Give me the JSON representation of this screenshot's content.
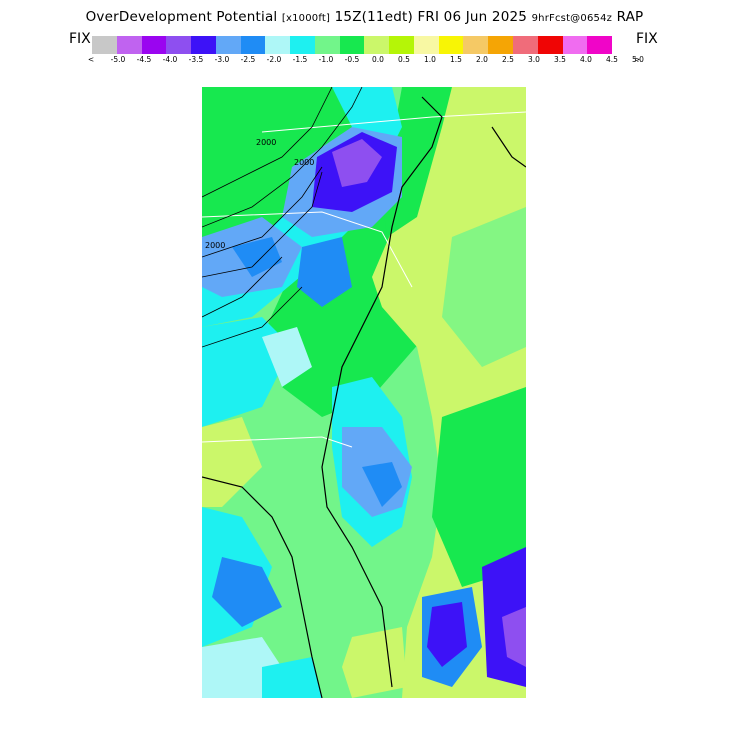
{
  "title": {
    "product": "OverDevelopment Potential",
    "units": "[x1000ft]",
    "valid": "15Z(11edt)",
    "date": "FRI 06 Jun 2025",
    "run": "9hrFcst@0654z",
    "model": "RAP"
  },
  "fix_left": "FIX",
  "fix_right": "FIX",
  "colorbar": {
    "colors": [
      "#c8c8c8",
      "#c063f0",
      "#9a05f0",
      "#8e4ff0",
      "#3d12f7",
      "#62a8f7",
      "#1f8cf5",
      "#aef7f7",
      "#1ef0f0",
      "#72f58a",
      "#17e84f",
      "#cbf76a",
      "#b5f507",
      "#f8f8a3",
      "#f8f505",
      "#f5c965",
      "#f5a505",
      "#f06c7a",
      "#f00505",
      "#f06cf0",
      "#f005c8"
    ],
    "tick_prev": "<",
    "tick_next": ">",
    "ticks": [
      "-5.0",
      "-4.5",
      "-4.0",
      "-3.5",
      "-3.0",
      "-2.5",
      "-2.0",
      "-1.5",
      "-1.0",
      "-0.5",
      "0.0",
      "0.5",
      "1.0",
      "1.5",
      "2.0",
      "2.5",
      "3.0",
      "3.5",
      "4.0",
      "4.5",
      "5.0"
    ]
  },
  "map": {
    "contour_labels": [
      "2000",
      "2000",
      "2000"
    ],
    "background": "#72f58a"
  }
}
